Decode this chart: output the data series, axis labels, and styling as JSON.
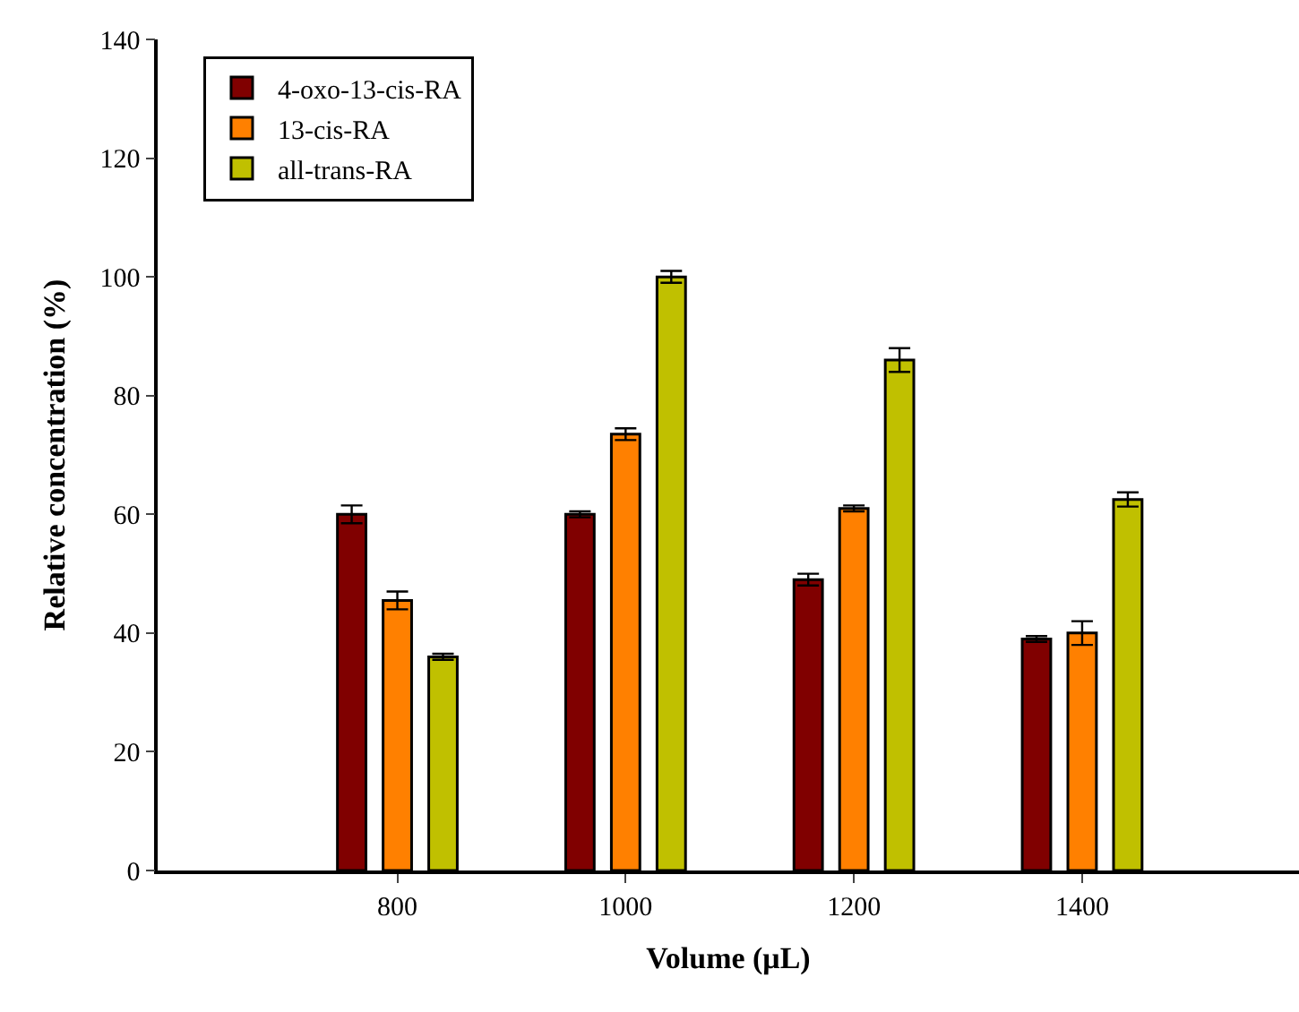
{
  "chart_data": {
    "type": "bar",
    "xlabel": "Volume (μL)",
    "ylabel": "Relative concentration (%)",
    "x": [
      800,
      1000,
      1200,
      1400
    ],
    "series": [
      {
        "name": "4-oxo-13-cis-RA",
        "color": "#800000",
        "values": [
          60,
          60,
          49,
          39
        ],
        "errors": [
          1.5,
          0.5,
          1,
          0.5
        ]
      },
      {
        "name": "13-cis-RA",
        "color": "#ff8000",
        "values": [
          45.5,
          73.5,
          61,
          40
        ],
        "errors": [
          1.5,
          1,
          0.5,
          2
        ]
      },
      {
        "name": "all-trans-RA",
        "color": "#c0c000",
        "values": [
          36,
          100,
          86,
          62.5
        ],
        "errors": [
          0.5,
          1,
          2,
          1.2
        ]
      }
    ],
    "xlim": [
      590,
      1590
    ],
    "xticks": [
      800,
      1000,
      1200,
      1400
    ],
    "ylim": [
      0,
      140
    ],
    "yticks": [
      0,
      20,
      40,
      60,
      80,
      100,
      120,
      140
    ],
    "legend": "top left"
  }
}
